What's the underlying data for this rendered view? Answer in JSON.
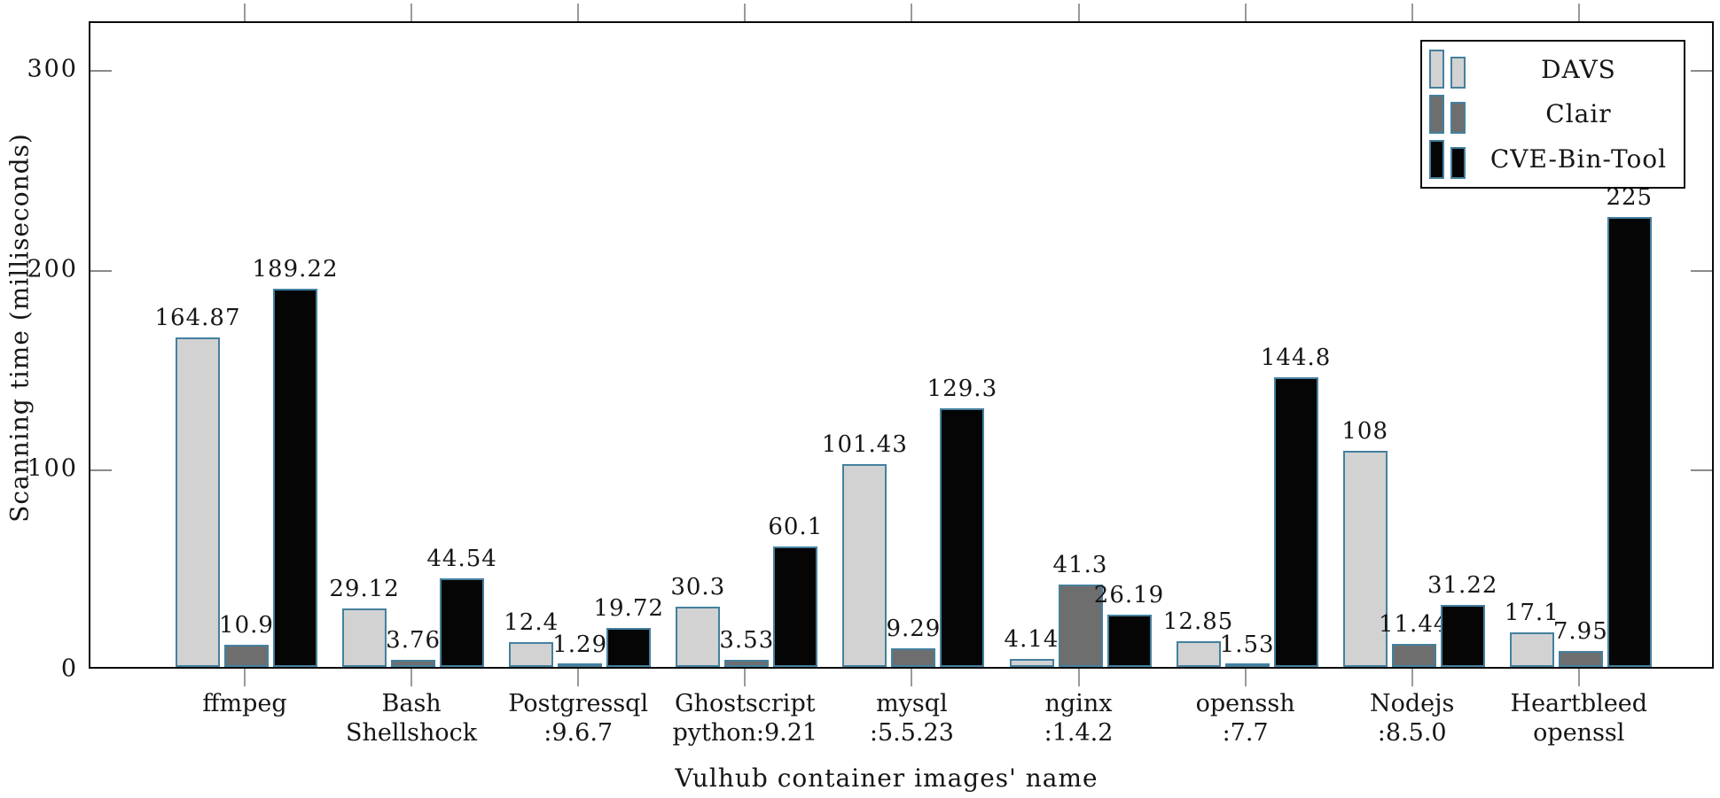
{
  "chart_data": {
    "type": "bar",
    "title": "",
    "xlabel": "Vulhub container images' name",
    "ylabel": "Scanning time (milliseconds)",
    "ylim": [
      0,
      324
    ],
    "yticks": [
      0,
      100,
      200,
      300
    ],
    "grid": false,
    "legend_position": "top-right-inside",
    "categories": [
      [
        "ffmpeg"
      ],
      [
        "Bash",
        "Shellshock"
      ],
      [
        "Postgressql",
        ":9.6.7"
      ],
      [
        "Ghostscript",
        "python:9.21"
      ],
      [
        "mysql",
        ":5.5.23"
      ],
      [
        "nginx",
        ":1.4.2"
      ],
      [
        "openssh",
        ":7.7"
      ],
      [
        "Nodejs",
        ":8.5.0"
      ],
      [
        "Heartbleed",
        "openssl"
      ]
    ],
    "series": [
      {
        "name": "DAVS",
        "fill_color": "#d2d2d2",
        "values": [
          164.87,
          29.12,
          12.4,
          30.3,
          101.43,
          4.14,
          12.85,
          108,
          17.1
        ],
        "labels": [
          "164.87",
          "29.12",
          "12.4",
          "30.3",
          "101.43",
          "4.14",
          "12.85",
          "108",
          "17.1"
        ]
      },
      {
        "name": "Clair",
        "fill_color": "#6e6e6e",
        "values": [
          10.9,
          3.76,
          1.29,
          3.53,
          9.29,
          41.3,
          1.53,
          11.44,
          7.95
        ],
        "labels": [
          "10.9",
          "3.76",
          "1.29",
          "3.53",
          "9.29",
          "41.3",
          "1.53",
          "11.44",
          "7.95"
        ]
      },
      {
        "name": "CVE-Bin-Tool",
        "fill_color": "#050505",
        "values": [
          189.22,
          44.54,
          19.72,
          60.1,
          129.3,
          26.19,
          144.8,
          31.22,
          225
        ],
        "labels": [
          "189.22",
          "44.54",
          "19.72",
          "60.1",
          "129.3",
          "26.19",
          "144.8",
          "31.22",
          "225"
        ]
      }
    ],
    "colors": {
      "bar_border": "#44809e",
      "axis": "#0a0a0a",
      "tick": "#8a8a8a",
      "text": "#161616"
    }
  }
}
